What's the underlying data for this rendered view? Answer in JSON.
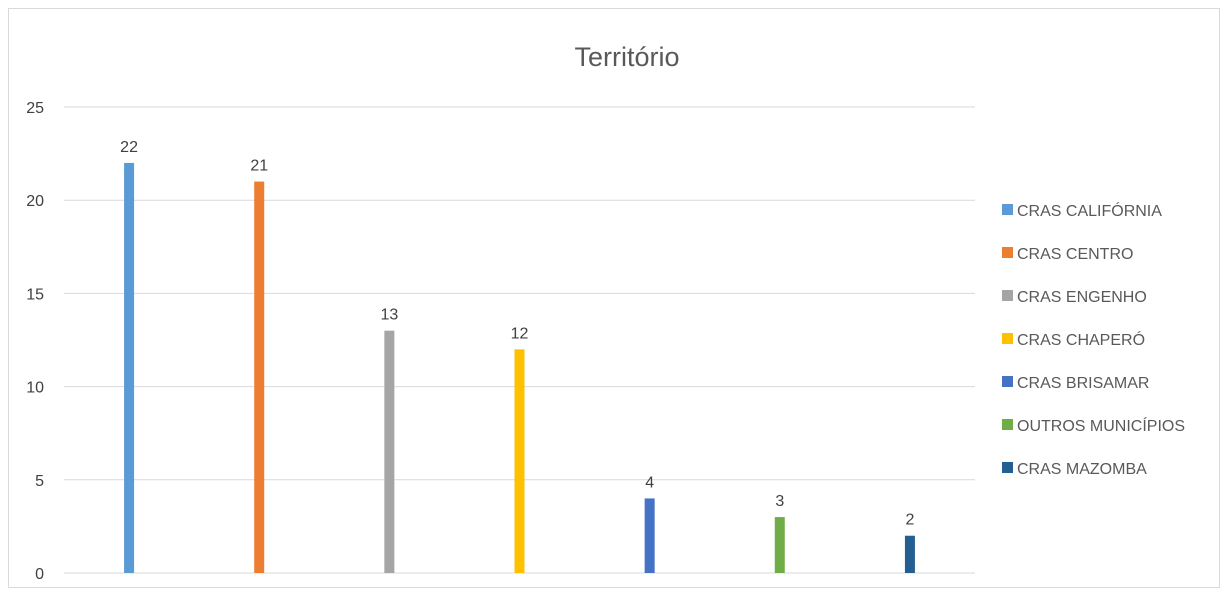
{
  "chart_data": {
    "type": "bar",
    "title": "Território",
    "xlabel": "",
    "ylabel": "",
    "ylim": [
      0,
      25
    ],
    "yticks": [
      0,
      5,
      10,
      15,
      20,
      25
    ],
    "grid": true,
    "legend_position": "right",
    "categories": [
      "CRAS CALIFÓRNIA",
      "CRAS CENTRO",
      "CRAS ENGENHO",
      "CRAS CHAPERÓ",
      "CRAS BRISAMAR",
      "OUTROS MUNICÍPIOS",
      "CRAS MAZOMBA"
    ],
    "values": [
      22,
      21,
      13,
      12,
      4,
      3,
      2
    ],
    "colors": [
      "#5b9bd5",
      "#ed7d31",
      "#a5a5a5",
      "#ffc000",
      "#4472c4",
      "#70ad47",
      "#255e91"
    ]
  }
}
